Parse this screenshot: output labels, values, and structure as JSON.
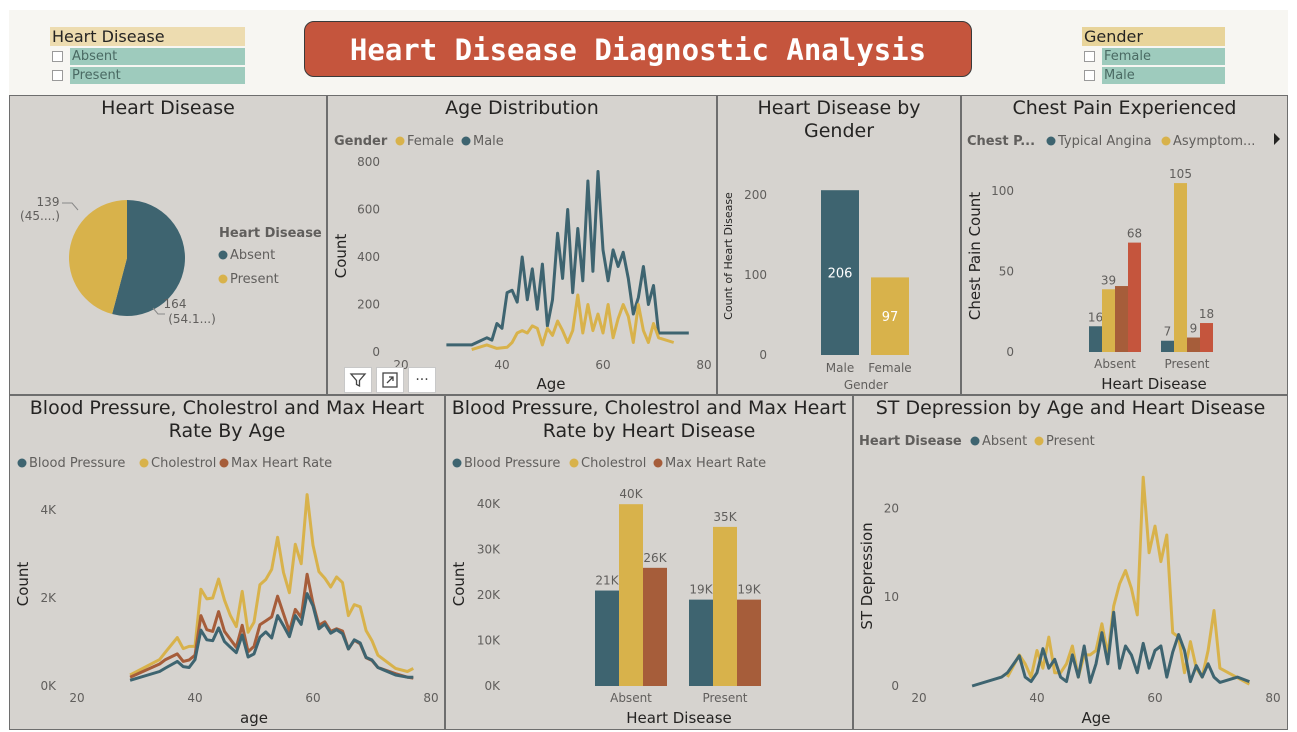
{
  "colors": {
    "teal": "#3e6470",
    "gold": "#d8b24b",
    "rust": "#a65d3a",
    "orange": "#c5553d",
    "axis": "#605e5c",
    "title": "#252423"
  },
  "header": {
    "title": "Heart Disease Diagnostic Analysis"
  },
  "slicer_heart": {
    "title": "Heart Disease",
    "options": [
      "Absent",
      "Present"
    ]
  },
  "slicer_gender": {
    "title": "Gender",
    "options": [
      "Female",
      "Male"
    ]
  },
  "context_toolbar": {
    "icons": [
      "filter-icon",
      "focus-mode-icon",
      "more-options-icon"
    ],
    "more_glyph": "···"
  },
  "panels": {
    "pie": {
      "title": "Heart Disease"
    },
    "age": {
      "title": "Age Distribution"
    },
    "gender": {
      "title_line1": "Heart Disease by",
      "title_line2": "Gender"
    },
    "chest": {
      "title": "Chest Pain Experienced"
    },
    "bpage": {
      "title_line1": "Blood Pressure, Cholestrol and Max Heart",
      "title_line2": "Rate By Age"
    },
    "bphd": {
      "title_line1": "Blood Pressure, Cholestrol and Max Heart",
      "title_line2": "Rate by Heart Disease"
    },
    "st": {
      "title": "ST Depression by Age and Heart Disease"
    }
  },
  "chart_data": [
    {
      "id": "pie",
      "type": "pie",
      "legend_title": "Heart Disease",
      "legend_position": "right",
      "slices": [
        {
          "name": "Absent",
          "value": 164,
          "label_l1": "164",
          "label_l2": "(54.1...)"
        },
        {
          "name": "Present",
          "value": 139,
          "label_l1": "139",
          "label_l2": "(45....)"
        }
      ]
    },
    {
      "id": "age",
      "type": "line",
      "legend_title": "Gender",
      "xlabel": "Age",
      "ylabel": "Count",
      "xlim": [
        20,
        80
      ],
      "ylim": [
        0,
        800
      ],
      "xticks": [
        "20",
        "40",
        "60",
        "80"
      ],
      "yticks": [
        "0",
        "200",
        "400",
        "600",
        "800"
      ],
      "series": [
        {
          "name": "Female",
          "x": [
            34,
            37,
            39,
            41,
            42,
            43,
            44,
            45,
            46,
            47,
            48,
            49,
            50,
            51,
            52,
            53,
            54,
            55,
            56,
            57,
            58,
            59,
            60,
            61,
            62,
            63,
            64,
            65,
            66,
            67,
            68,
            69,
            70,
            71,
            74
          ],
          "y": [
            10,
            30,
            15,
            20,
            40,
            80,
            90,
            80,
            110,
            100,
            30,
            100,
            70,
            130,
            90,
            40,
            90,
            240,
            80,
            200,
            90,
            160,
            80,
            200,
            60,
            140,
            200,
            150,
            40,
            200,
            90,
            40,
            120,
            60,
            40
          ]
        },
        {
          "name": "Male",
          "x": [
            29,
            34,
            35,
            37,
            38,
            39,
            40,
            41,
            42,
            43,
            44,
            45,
            46,
            47,
            48,
            49,
            50,
            51,
            52,
            53,
            54,
            55,
            56,
            57,
            58,
            59,
            60,
            61,
            62,
            63,
            64,
            65,
            66,
            67,
            68,
            69,
            70,
            71,
            77
          ],
          "y": [
            30,
            30,
            40,
            60,
            50,
            120,
            100,
            250,
            260,
            210,
            400,
            220,
            350,
            180,
            370,
            110,
            220,
            500,
            310,
            600,
            250,
            520,
            300,
            720,
            340,
            760,
            430,
            300,
            430,
            360,
            420,
            310,
            160,
            230,
            360,
            200,
            280,
            80,
            80
          ]
        }
      ]
    },
    {
      "id": "gender",
      "type": "bar",
      "xlabel": "Gender",
      "ylabel": "Count of Heart Disease",
      "ylim": [
        0,
        230
      ],
      "yticks": [
        "0",
        "100",
        "200"
      ],
      "categories": [
        "Male",
        "Female"
      ],
      "values": [
        206,
        97
      ]
    },
    {
      "id": "chest",
      "type": "bar",
      "legend_title": "Chest P...",
      "xlabel": "Heart Disease",
      "ylabel": "Chest Pain Count",
      "ylim": [
        0,
        115
      ],
      "yticks": [
        "0",
        "50",
        "100"
      ],
      "categories": [
        "Absent",
        "Present"
      ],
      "series": [
        {
          "name": "Typical Angina",
          "values": [
            16,
            7
          ]
        },
        {
          "name": "Asymptom...",
          "values": [
            39,
            105
          ]
        },
        {
          "name": "",
          "values": [
            41,
            9
          ]
        },
        {
          "name": "",
          "values": [
            68,
            18
          ]
        }
      ]
    },
    {
      "id": "bpage",
      "type": "line",
      "xlabel": "age",
      "ylabel": "Count",
      "xlim": [
        20,
        80
      ],
      "ylim": [
        0,
        5000
      ],
      "xticks": [
        "20",
        "40",
        "60",
        "80"
      ],
      "yticks": [
        "0K",
        "2K",
        "4K"
      ],
      "series": [
        {
          "name": "Blood Pressure",
          "x": [
            29,
            34,
            35,
            37,
            38,
            39,
            40,
            41,
            42,
            43,
            44,
            45,
            46,
            47,
            48,
            49,
            50,
            51,
            52,
            53,
            54,
            55,
            56,
            57,
            58,
            59,
            60,
            61,
            62,
            63,
            64,
            65,
            66,
            67,
            68,
            69,
            70,
            71,
            74,
            76,
            77
          ],
          "y": [
            130,
            330,
            410,
            560,
            440,
            420,
            600,
            1270,
            1050,
            1030,
            1320,
            1010,
            880,
            760,
            1160,
            660,
            730,
            1110,
            1230,
            1090,
            1600,
            1370,
            1120,
            1600,
            1400,
            2100,
            1820,
            1300,
            1410,
            1200,
            1280,
            1190,
            840,
            1050,
            980,
            650,
            590,
            420,
            250,
            200,
            200
          ]
        },
        {
          "name": "Cholestrol",
          "x": [
            29,
            34,
            35,
            37,
            38,
            39,
            40,
            41,
            42,
            43,
            44,
            45,
            46,
            47,
            48,
            49,
            50,
            51,
            52,
            53,
            54,
            55,
            56,
            57,
            58,
            59,
            60,
            61,
            62,
            63,
            64,
            65,
            66,
            67,
            68,
            69,
            70,
            71,
            74,
            76,
            77
          ],
          "y": [
            250,
            600,
            770,
            1100,
            850,
            900,
            900,
            2200,
            1980,
            2000,
            2430,
            1950,
            1600,
            1350,
            2150,
            1220,
            1450,
            2300,
            2420,
            2650,
            3380,
            2580,
            2120,
            3220,
            2780,
            4350,
            3200,
            2600,
            2450,
            2250,
            2480,
            2350,
            1600,
            1850,
            1800,
            1260,
            1030,
            700,
            400,
            330,
            400
          ]
        },
        {
          "name": "Max Heart Rate",
          "x": [
            29,
            34,
            35,
            37,
            38,
            39,
            40,
            41,
            42,
            43,
            44,
            45,
            46,
            47,
            48,
            49,
            50,
            51,
            52,
            53,
            54,
            55,
            56,
            57,
            58,
            59,
            60,
            61,
            62,
            63,
            64,
            65,
            66,
            67,
            68,
            69,
            70,
            71,
            74,
            76,
            77
          ],
          "y": [
            200,
            500,
            600,
            730,
            560,
            590,
            700,
            1600,
            1280,
            1240,
            1690,
            1240,
            1060,
            880,
            1380,
            780,
            900,
            1390,
            1480,
            1570,
            2040,
            1640,
            1240,
            1740,
            1560,
            2540,
            1880,
            1380,
            1460,
            1240,
            1300,
            1250,
            840,
            1040,
            960,
            640,
            580,
            420,
            280,
            200,
            180
          ]
        }
      ]
    },
    {
      "id": "bphd",
      "type": "bar",
      "xlabel": "Heart Disease",
      "ylabel": "Count",
      "ylim": [
        0,
        44000
      ],
      "yticks": [
        "0K",
        "10K",
        "20K",
        "30K",
        "40K"
      ],
      "categories": [
        "Absent",
        "Present"
      ],
      "series": [
        {
          "name": "Blood Pressure",
          "values": [
            21000,
            19000
          ],
          "labels": [
            "21K",
            "19K"
          ]
        },
        {
          "name": "Cholestrol",
          "values": [
            40000,
            35000
          ],
          "labels": [
            "40K",
            "35K"
          ]
        },
        {
          "name": "Max Heart Rate",
          "values": [
            26000,
            19000
          ],
          "labels": [
            "26K",
            "19K"
          ]
        }
      ]
    },
    {
      "id": "st",
      "type": "line",
      "legend_title": "Heart Disease",
      "xlabel": "Age",
      "ylabel": "ST Depression",
      "xlim": [
        20,
        80
      ],
      "ylim": [
        0,
        26
      ],
      "xticks": [
        "20",
        "40",
        "60",
        "80"
      ],
      "yticks": [
        "0",
        "10",
        "20"
      ],
      "series": [
        {
          "name": "Absent",
          "x": [
            29,
            34,
            35,
            37,
            38,
            39,
            40,
            41,
            42,
            43,
            44,
            45,
            46,
            47,
            48,
            49,
            50,
            51,
            52,
            53,
            54,
            55,
            56,
            57,
            58,
            59,
            60,
            61,
            62,
            63,
            64,
            65,
            66,
            67,
            68,
            69,
            70,
            71,
            74,
            76
          ],
          "y": [
            0,
            1.0,
            1.5,
            3.4,
            1.0,
            0.5,
            1.5,
            4.2,
            2.0,
            3.0,
            1.0,
            0.5,
            3.5,
            1.0,
            4.5,
            0.4,
            2.5,
            6.0,
            2.5,
            8.3,
            2.0,
            4.5,
            3.5,
            1.5,
            4.8,
            2.0,
            4.0,
            4.5,
            1.0,
            3.8,
            5.8,
            4.0,
            0.5,
            2.3,
            1.0,
            2.5,
            1.0,
            0.4,
            1.0,
            0.5
          ]
        },
        {
          "name": "Present",
          "x": [
            35,
            37,
            38,
            39,
            40,
            41,
            42,
            43,
            44,
            45,
            46,
            47,
            48,
            49,
            50,
            51,
            52,
            53,
            54,
            55,
            56,
            57,
            58,
            59,
            60,
            61,
            62,
            63,
            64,
            65,
            66,
            67,
            68,
            69,
            70,
            71,
            76
          ],
          "y": [
            1.0,
            3.5,
            2.5,
            1.0,
            4.0,
            2.0,
            5.5,
            1.5,
            1.5,
            2.5,
            4.5,
            1.0,
            3.5,
            3.5,
            4.0,
            7.0,
            3.5,
            9.0,
            11.5,
            13.0,
            11.0,
            8.0,
            23.5,
            15.0,
            18.0,
            14.0,
            17.0,
            6.0,
            5.5,
            1.5,
            5.0,
            2.0,
            1.0,
            4.0,
            8.5,
            2.0,
            0.2
          ]
        }
      ]
    }
  ]
}
